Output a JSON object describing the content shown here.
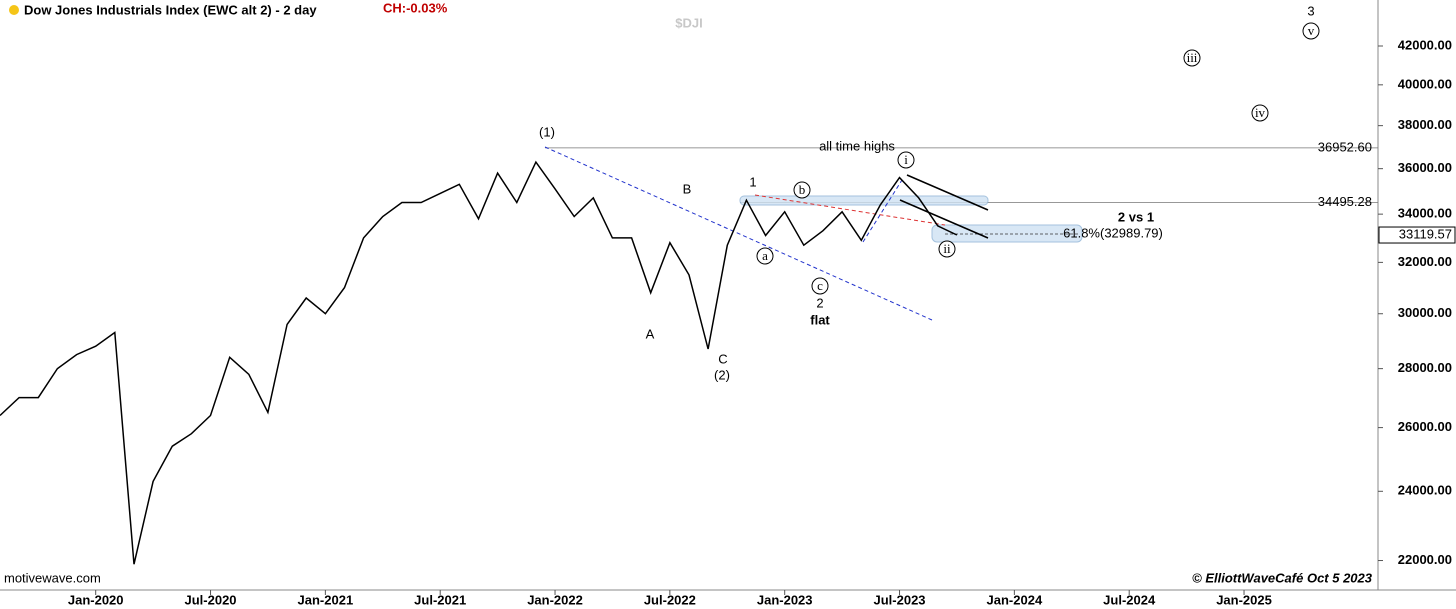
{
  "chart_data": {
    "type": "line",
    "title": "Dow Jones Industrials Index (EWC alt 2) - 2 day",
    "change": "CH:-0.03%",
    "symbol": "$DJI",
    "source": "motivewave.com",
    "credit": "© ElliottWaveCafé Oct 5 2023",
    "x": [
      "2019-08",
      "2019-09",
      "2019-10",
      "2019-11",
      "2019-12",
      "2020-01",
      "2020-02",
      "2020-03",
      "2020-04",
      "2020-05",
      "2020-06",
      "2020-07",
      "2020-08",
      "2020-09",
      "2020-10",
      "2020-11",
      "2020-12",
      "2021-01",
      "2021-02",
      "2021-03",
      "2021-04",
      "2021-05",
      "2021-06",
      "2021-07",
      "2021-08",
      "2021-09",
      "2021-10",
      "2021-11",
      "2021-12",
      "2022-01",
      "2022-02",
      "2022-03",
      "2022-04",
      "2022-05",
      "2022-06",
      "2022-07",
      "2022-08",
      "2022-09",
      "2022-10",
      "2022-11",
      "2022-12",
      "2023-01",
      "2023-02",
      "2023-03",
      "2023-04",
      "2023-05",
      "2023-06",
      "2023-07",
      "2023-08",
      "2023-09",
      "2023-10"
    ],
    "series": [
      {
        "name": "$DJI",
        "color": "#000000",
        "values": [
          26400,
          27000,
          27000,
          28000,
          28500,
          28800,
          29300,
          21900,
          24300,
          25400,
          25800,
          26400,
          28400,
          27800,
          26500,
          29600,
          30600,
          30000,
          31000,
          33000,
          33900,
          34500,
          34500,
          34900,
          35300,
          33800,
          35800,
          34500,
          36300,
          35100,
          33900,
          34700,
          33000,
          33000,
          30800,
          32800,
          31500,
          28700,
          32700,
          34600,
          33100,
          34100,
          32700,
          33300,
          34100,
          32900,
          34400,
          35600,
          34700,
          33500,
          33120
        ]
      }
    ],
    "xlim": [
      "2019-08",
      "2025-08"
    ],
    "xticks": [
      {
        "value": "2020-01",
        "label": "Jan-2020"
      },
      {
        "value": "2020-07",
        "label": "Jul-2020"
      },
      {
        "value": "2021-01",
        "label": "Jan-2021"
      },
      {
        "value": "2021-07",
        "label": "Jul-2021"
      },
      {
        "value": "2022-01",
        "label": "Jan-2022"
      },
      {
        "value": "2022-07",
        "label": "Jul-2022"
      },
      {
        "value": "2023-01",
        "label": "Jan-2023"
      },
      {
        "value": "2023-07",
        "label": "Jul-2023"
      },
      {
        "value": "2024-01",
        "label": "Jan-2024"
      },
      {
        "value": "2024-07",
        "label": "Jul-2024"
      },
      {
        "value": "2025-01",
        "label": "Jan-2025"
      }
    ],
    "ylim": [
      21200,
      44500
    ],
    "log_scale": true,
    "yticks": [
      {
        "value": 22000,
        "label": "22000.00"
      },
      {
        "value": 24000,
        "label": "24000.00"
      },
      {
        "value": 26000,
        "label": "26000.00"
      },
      {
        "value": 28000,
        "label": "28000.00"
      },
      {
        "value": 30000,
        "label": "30000.00"
      },
      {
        "value": 32000,
        "label": "32000.00"
      },
      {
        "value": 34000,
        "label": "34000.00"
      },
      {
        "value": 36000,
        "label": "36000.00"
      },
      {
        "value": 38000,
        "label": "38000.00"
      },
      {
        "value": 40000,
        "label": "40000.00"
      },
      {
        "value": 42000,
        "label": "42000.00"
      }
    ],
    "levels": [
      {
        "value": 36952.6,
        "label": "36952.60"
      },
      {
        "value": 34495.28,
        "label": "34495.28"
      }
    ],
    "last_price": {
      "value": 33119.57,
      "label": "33119.57"
    },
    "annotations": [
      "(1)",
      "B",
      "1",
      "A",
      "C",
      "(2)",
      "a",
      "b",
      "c",
      "2",
      "flat",
      "all time highs",
      "i",
      "ii",
      "iii",
      "iv",
      "v",
      "3",
      "2 vs 1",
      "61.8%(32989.79)"
    ]
  }
}
